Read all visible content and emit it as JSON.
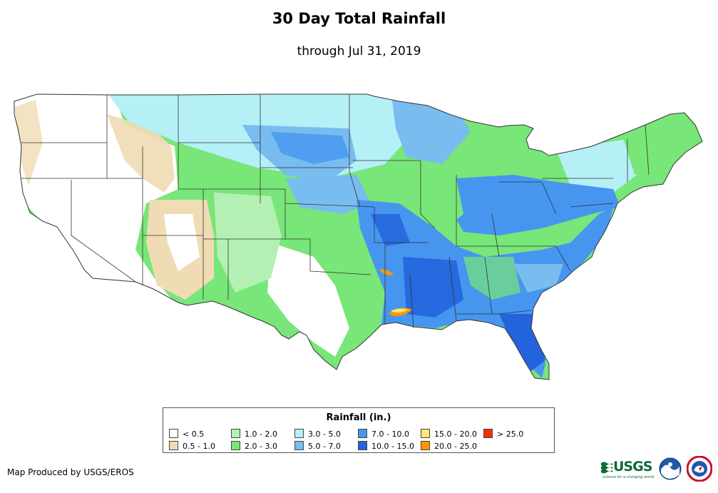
{
  "title": "30 Day Total Rainfall",
  "subtitle": "through Jul 31, 2019",
  "legend": {
    "title": "Rainfall (in.)",
    "items": [
      {
        "label": "< 0.5",
        "color": "#ffffff"
      },
      {
        "label": "0.5 - 1.0",
        "color": "#f0dcb4"
      },
      {
        "label": "1.0 - 2.0",
        "color": "#b4f0b4"
      },
      {
        "label": "2.0 - 3.0",
        "color": "#78e678"
      },
      {
        "label": "3.0 - 5.0",
        "color": "#b4f0f5"
      },
      {
        "label": "5.0 - 7.0",
        "color": "#78bcf0"
      },
      {
        "label": "7.0 - 10.0",
        "color": "#4696f0"
      },
      {
        "label": "10.0 - 15.0",
        "color": "#2364dc"
      },
      {
        "label": "15.0 - 20.0",
        "color": "#ffe678"
      },
      {
        "label": "20.0 - 25.0",
        "color": "#ff9600"
      },
      {
        "label": "> 25.0",
        "color": "#f03200"
      }
    ]
  },
  "credit": "Map Produced by USGS/EROS",
  "logos": {
    "usgs": "USGS",
    "usgs_tagline": "science for a changing world",
    "noaa": "noaa-logo-icon",
    "nws": "nws-logo-icon"
  }
}
